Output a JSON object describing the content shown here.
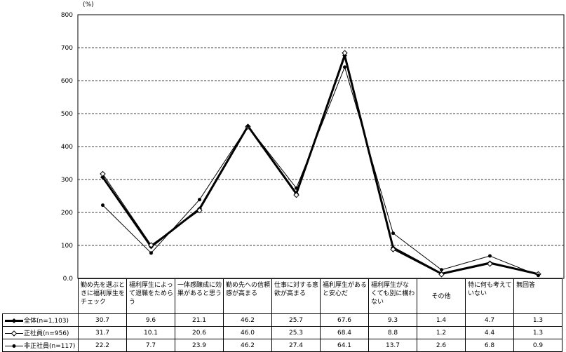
{
  "chart_data": {
    "type": "line",
    "unit_label": "(%)",
    "ylim": [
      0,
      800
    ],
    "yticks": [
      "0.0",
      "100",
      "200",
      "300",
      "400",
      "500",
      "600",
      "700",
      "800"
    ],
    "grid": true,
    "categories": [
      "勤め先を選ぶときに福利厚生をチェック",
      "福利厚生によって退職をためらう",
      "一体感醸成に効果があると思う",
      "勤め先への信頼感が高まる",
      "仕事に対する意欲が高まる",
      "福利厚生があると安心だ",
      "福利厚生がなくても別に構わない",
      "その他",
      "特に何も考えていない",
      "無回答"
    ],
    "series": [
      {
        "name": "全体(n=1,103)",
        "values": [
          30.7,
          9.6,
          21.1,
          46.2,
          25.7,
          67.6,
          9.3,
          1.4,
          4.7,
          1.3
        ],
        "labels": [
          "30.7",
          "9.6",
          "21.1",
          "46.2",
          "25.7",
          "67.6",
          "9.3",
          "1.4",
          "4.7",
          "1.3"
        ],
        "style": "thick-diamond"
      },
      {
        "name": "正社員(n=956)",
        "values": [
          31.7,
          10.1,
          20.6,
          46.0,
          25.3,
          68.4,
          8.8,
          1.2,
          4.4,
          1.3
        ],
        "labels": [
          "31.7",
          "10.1",
          "20.6",
          "46.0",
          "25.3",
          "68.4",
          "8.8",
          "1.2",
          "4.4",
          "1.3"
        ],
        "style": "open-diamond"
      },
      {
        "name": "非正社員(n=117)",
        "values": [
          22.2,
          7.7,
          23.9,
          46.2,
          27.4,
          64.1,
          13.7,
          2.6,
          6.8,
          0.9
        ],
        "labels": [
          "22.2",
          "7.7",
          "23.9",
          "46.2",
          "27.4",
          "64.1",
          "13.7",
          "2.6",
          "6.8",
          "0.9"
        ],
        "style": "thin-dot"
      }
    ],
    "colors": {
      "line": "#000000",
      "grid": "#000000",
      "background": "#ffffff"
    }
  }
}
